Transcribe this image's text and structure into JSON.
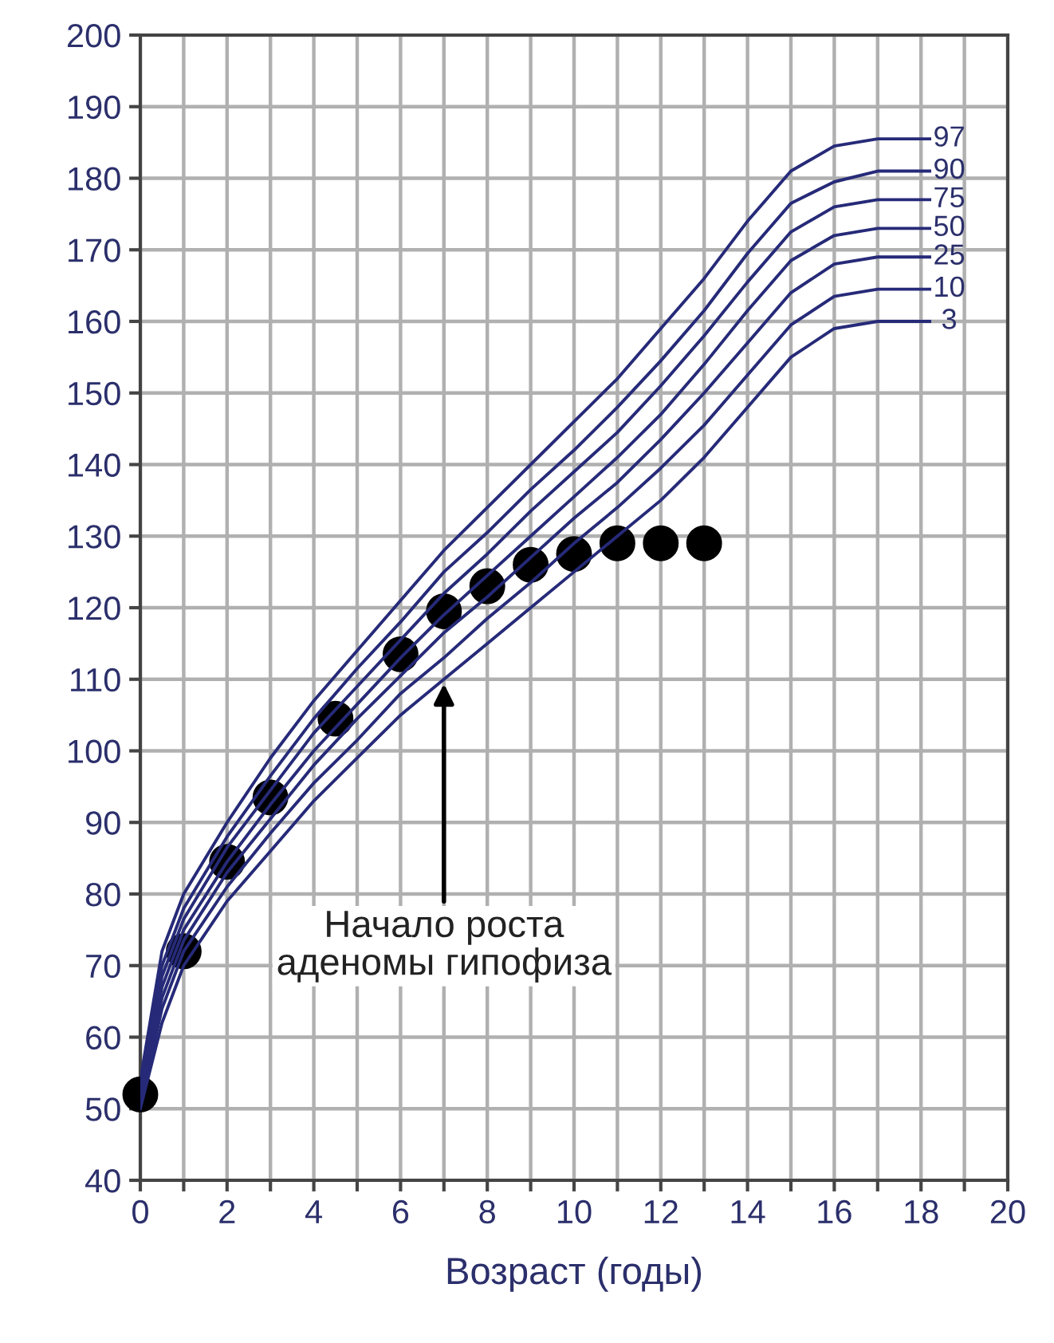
{
  "chart_data": {
    "type": "line",
    "xlabel": "Возраст (годы)",
    "xlim": [
      0,
      20
    ],
    "ylim": [
      40,
      200
    ],
    "xticks": [
      0,
      {
        "value": 1,
        "label": null
      },
      2,
      {
        "value": 3,
        "label": null
      },
      4,
      {
        "value": 5,
        "label": null
      },
      6,
      {
        "value": 7,
        "label": null
      },
      8,
      {
        "value": 9,
        "label": null
      },
      10,
      {
        "value": 11,
        "label": null
      },
      12,
      {
        "value": 13,
        "label": null
      },
      14,
      {
        "value": 15,
        "label": null
      },
      16,
      {
        "value": 17,
        "label": null
      },
      18,
      {
        "value": 19,
        "label": null
      },
      20
    ],
    "yticks": [
      40,
      50,
      60,
      70,
      80,
      90,
      100,
      110,
      120,
      130,
      140,
      150,
      160,
      170,
      180,
      190,
      200
    ],
    "grid": true,
    "marker": "none",
    "line_style": "solid",
    "x": [
      0,
      0.5,
      1,
      2,
      3,
      4,
      5,
      6,
      7,
      8,
      9,
      10,
      11,
      12,
      13,
      14,
      15,
      16,
      17,
      18.2
    ],
    "series": [
      {
        "name": "97",
        "color": "#262a78",
        "values": [
          54,
          72,
          80,
          90,
          99,
          107,
          114,
          121,
          128,
          134,
          140,
          146,
          152,
          159,
          166,
          174,
          181,
          184.5,
          185.5,
          185.5
        ]
      },
      {
        "name": "90",
        "color": "#262a78",
        "values": [
          53,
          70,
          78,
          88,
          96.5,
          104.5,
          111.5,
          118,
          125,
          130.5,
          136.5,
          142,
          148,
          154.5,
          161.5,
          169.5,
          176.5,
          179.5,
          181,
          181
        ]
      },
      {
        "name": "75",
        "color": "#262a78",
        "values": [
          52.5,
          68.5,
          76.5,
          86.5,
          94.5,
          102.5,
          109,
          115.5,
          122,
          127.5,
          133.5,
          139,
          144.5,
          151,
          158,
          165.5,
          172.5,
          176,
          177,
          177
        ]
      },
      {
        "name": "50",
        "color": "#262a78",
        "values": [
          52,
          67,
          75,
          84.5,
          92.5,
          100,
          106.5,
          113,
          119,
          124.5,
          130,
          135.5,
          141,
          147,
          154,
          161.5,
          168.5,
          172,
          173,
          173
        ]
      },
      {
        "name": "25",
        "color": "#262a78",
        "values": [
          51.5,
          65.5,
          73.5,
          83,
          90.5,
          98,
          104.5,
          110.5,
          116.5,
          121.5,
          127,
          132.5,
          137.5,
          143.5,
          150,
          157,
          164,
          168,
          169,
          169
        ]
      },
      {
        "name": "10",
        "color": "#262a78",
        "values": [
          50.5,
          64,
          72,
          81,
          88.5,
          95.5,
          101.5,
          108,
          113,
          118.5,
          123.5,
          129,
          134,
          139.5,
          145.5,
          152.5,
          159.5,
          163.5,
          164.5,
          164.5
        ]
      },
      {
        "name": "3",
        "color": "#262a78",
        "values": [
          50,
          62,
          70,
          79,
          86,
          93,
          99,
          105,
          110,
          115,
          120,
          125,
          130,
          135,
          141,
          148,
          155,
          159,
          160,
          160
        ]
      },
      {
        "type": "scatter",
        "color": "#000000",
        "marker": "circle",
        "x": [
          0,
          1,
          2,
          3,
          4.5,
          6,
          7,
          8,
          9,
          10,
          11,
          12,
          13
        ],
        "values": [
          52,
          72,
          84.5,
          93.5,
          104.5,
          113.5,
          119.5,
          123,
          126,
          127.5,
          129,
          129,
          129
        ]
      }
    ],
    "annotations": [
      {
        "text": "Начало роста\nаденомы гипофиза",
        "x": 7,
        "y": 110
      }
    ]
  }
}
